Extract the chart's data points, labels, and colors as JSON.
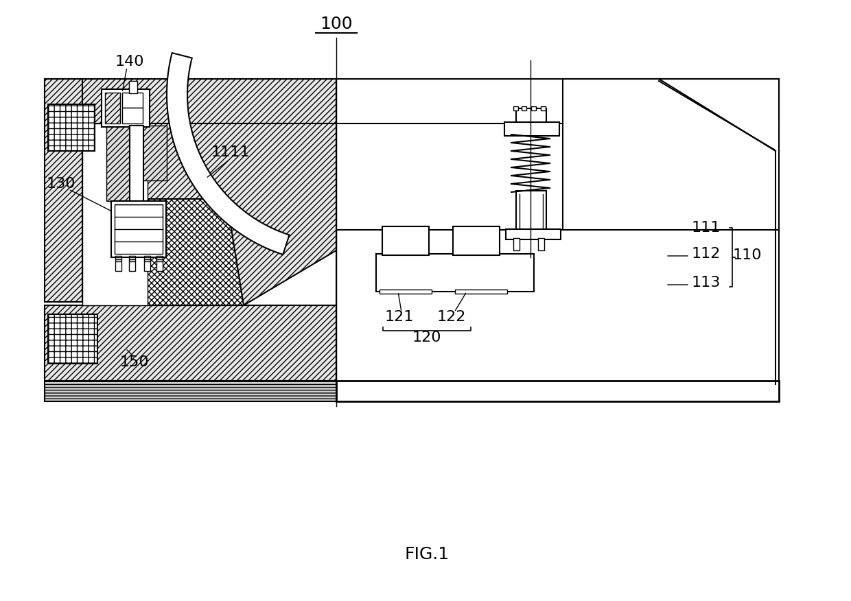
{
  "bg_color": "#ffffff",
  "line_color": "#000000",
  "fig_title": "FIG.1",
  "ref_100": "100",
  "ref_140": "140",
  "ref_1111": "1111",
  "ref_130": "130",
  "ref_150": "150",
  "ref_111": "111",
  "ref_112": "112",
  "ref_113": "113",
  "ref_110": "110",
  "ref_121": "121",
  "ref_122": "122",
  "ref_120": "120"
}
